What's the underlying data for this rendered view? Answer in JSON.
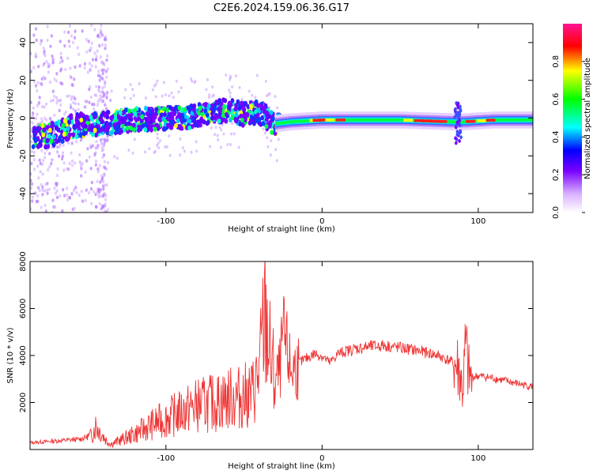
{
  "figure": {
    "title": "C2E6.2024.159.06.36.G17"
  },
  "chart_data": [
    {
      "type": "heatmap",
      "xlabel": "Height of straight line (km)",
      "ylabel": "Frequency (Hz)",
      "xlim": [
        -187,
        135
      ],
      "ylim": [
        -50,
        50
      ],
      "x_ticks": [
        -100,
        0,
        100
      ],
      "y_ticks": [
        -40,
        -20,
        0,
        20,
        40
      ],
      "colorbar": {
        "label": "Normalized spectral amplitude",
        "range": [
          0,
          1
        ],
        "ticks": [
          0.0,
          0.2,
          0.4,
          0.6,
          0.8
        ],
        "colormap": [
          "#ffffff",
          "#a020f0",
          "#0000ff",
          "#00ffff",
          "#00ff00",
          "#ffff00",
          "#ff0000",
          "#ff1493"
        ]
      },
      "band_center_hz": [
        [
          -180,
          -10
        ],
        [
          -170,
          -8
        ],
        [
          -160,
          -4
        ],
        [
          -140,
          -3
        ],
        [
          -120,
          -1
        ],
        [
          -100,
          0
        ],
        [
          -80,
          1
        ],
        [
          -70,
          3
        ],
        [
          -60,
          4
        ],
        [
          -50,
          2
        ],
        [
          -40,
          3
        ],
        [
          -35,
          0
        ],
        [
          -30,
          -3
        ],
        [
          -20,
          -2
        ],
        [
          0,
          -1
        ],
        [
          50,
          -1
        ],
        [
          85,
          -2
        ],
        [
          90,
          -2
        ],
        [
          110,
          -1
        ],
        [
          135,
          -1
        ]
      ]
    },
    {
      "type": "line",
      "xlabel": "Height of straight line (km)",
      "ylabel": "SNR (10 * v/v)",
      "xlim": [
        -187,
        135
      ],
      "ylim": [
        0,
        8000
      ],
      "x_ticks": [
        -100,
        0,
        100
      ],
      "y_ticks": [
        2000,
        4000,
        6000,
        8000
      ],
      "color": "#ee3333",
      "series": [
        {
          "x": [
            -187,
            -175,
            -165,
            -155,
            -148,
            -145,
            -142,
            -138,
            -135,
            -130,
            -120,
            -110,
            -100,
            -90,
            -80,
            -70,
            -60,
            -50,
            -45,
            -40,
            -37,
            -35,
            -33,
            -30,
            -27,
            -25,
            -22,
            -20,
            -18,
            -15,
            -10,
            -5,
            0,
            5,
            10,
            15,
            20,
            30,
            40,
            50,
            60,
            70,
            75,
            80,
            85,
            88,
            90,
            92,
            94,
            96,
            100,
            110,
            120,
            130,
            135
          ],
          "y": [
            300,
            350,
            400,
            450,
            600,
            1100,
            800,
            400,
            250,
            400,
            700,
            1100,
            1400,
            1700,
            2000,
            2100,
            2300,
            2400,
            2500,
            3500,
            6000,
            5500,
            4000,
            3000,
            3500,
            5000,
            4200,
            3500,
            3600,
            3700,
            3900,
            4100,
            4000,
            3700,
            4100,
            4200,
            4300,
            4400,
            4450,
            4350,
            4250,
            4100,
            4000,
            3850,
            3700,
            3500,
            2500,
            4500,
            3200,
            3100,
            3150,
            3050,
            2900,
            2750,
            2700
          ]
        }
      ]
    }
  ]
}
